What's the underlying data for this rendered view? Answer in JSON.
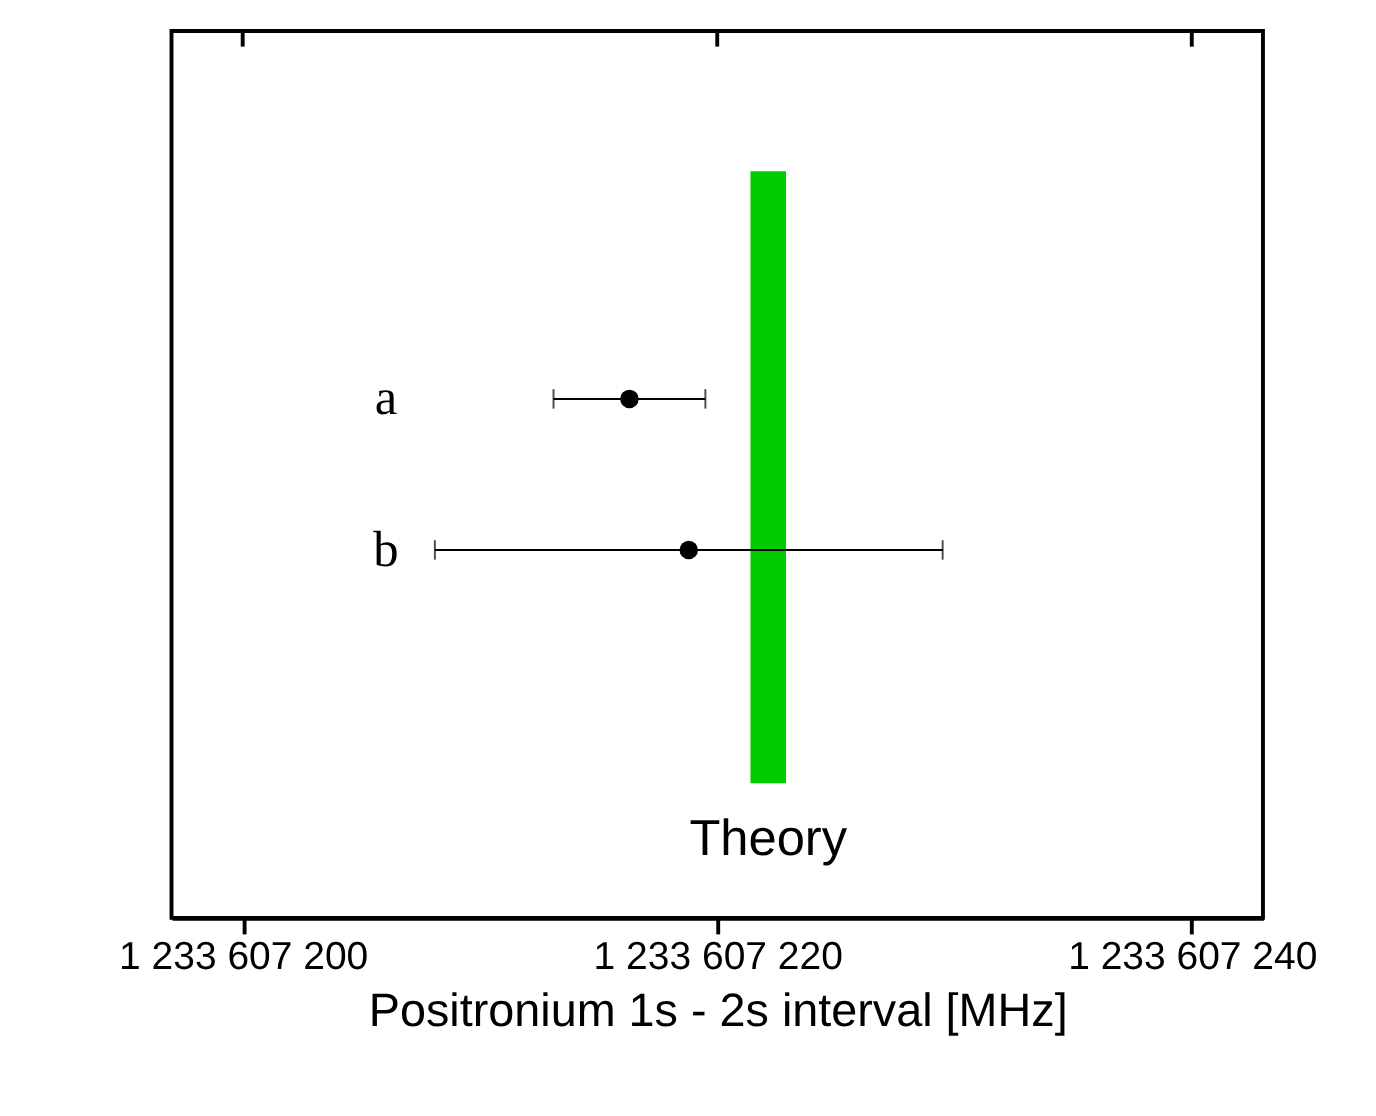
{
  "chart_data": {
    "type": "scatter",
    "orientation": "horizontal",
    "xlabel": "Positronium 1s - 2s interval [MHz]",
    "categories": [
      "a",
      "b"
    ],
    "values": [
      1233607216.3,
      1233607218.8
    ],
    "errors": [
      3.2,
      10.7
    ],
    "color": "#000000",
    "marker": "circle",
    "xlim": [
      1233607197,
      1233607243
    ],
    "xticks": [
      {
        "value": 1233607200,
        "label": "1 233 607 200"
      },
      {
        "value": 1233607220,
        "label": "1 233 607 220"
      },
      {
        "value": 1233607240,
        "label": "1 233 607 240"
      }
    ],
    "bands": [
      {
        "axis": "x",
        "from": 1233607221.4,
        "to": 1233607222.9,
        "label": "Theory",
        "color": "#00cc00"
      }
    ]
  }
}
